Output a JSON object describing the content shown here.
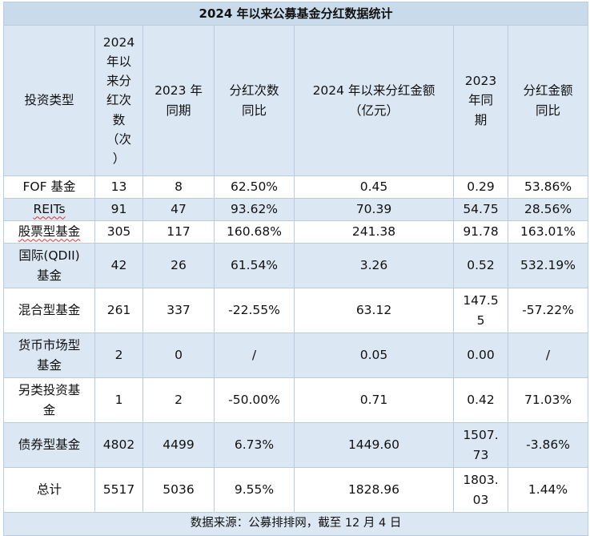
{
  "title": "2024 年以来公募基金分红数据统计",
  "headers": [
    "投资类型",
    "2024\n年以\n来分\n红次\n数\n（次\n）",
    "2023 年\n同期",
    "分红次数\n同比",
    "2024 年以来分红金额\n（亿元）",
    "2023\n年同\n期",
    "分红金额\n同比"
  ],
  "rows": [
    [
      "FOF 基金",
      "13",
      "8",
      "62.50%",
      "0.45",
      "0.29",
      "53.86%"
    ],
    [
      "REITs",
      "91",
      "47",
      "93.62%",
      "70.39",
      "54.75",
      "28.56%"
    ],
    [
      "股票型基金",
      "305",
      "117",
      "160.68%",
      "241.38",
      "91.78",
      "163.01%"
    ],
    [
      "国际(QDII)\n基金",
      "42",
      "26",
      "61.54%",
      "3.26",
      "0.52",
      "532.19%"
    ],
    [
      "混合型基金",
      "261",
      "337",
      "-22.55%",
      "63.12",
      "147.5\n5",
      "-57.22%"
    ],
    [
      "货币市场型\n基金",
      "2",
      "0",
      "/",
      "0.05",
      "0.00",
      "/"
    ],
    [
      "另类投资基\n金",
      "1",
      "2",
      "-50.00%",
      "0.71",
      "0.42",
      "71.03%"
    ],
    [
      "债券型基金",
      "4802",
      "4499",
      "6.73%",
      "1449.60",
      "1507.\n73",
      "-3.86%"
    ],
    [
      "总计",
      "5517",
      "5036",
      "9.55%",
      "1828.96",
      "1803.\n03",
      "1.44%"
    ]
  ],
  "footer": "数据来源：公募排排网，截至 12 月 4 日"
}
